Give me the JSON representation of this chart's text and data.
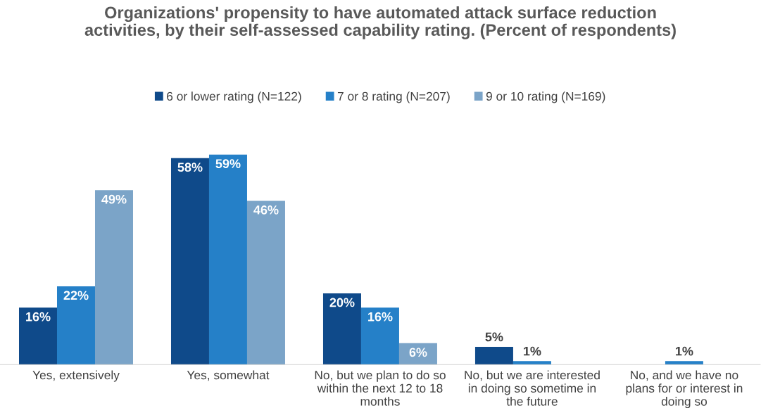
{
  "chart_data": {
    "type": "bar",
    "title": "Organizations' propensity to have automated attack surface reduction activities, by their self-assessed capability rating. (Percent of respondents)",
    "categories": [
      "Yes, extensively",
      "Yes, somewhat",
      "No, but we plan to do so within the next 12 to 18 months",
      "No, but we are interested in doing so sometime in the future",
      "No, and we have no plans for or interest in doing so"
    ],
    "series": [
      {
        "name": "6 or lower rating (N=122)",
        "color": "#0f4a8a",
        "values": [
          16,
          58,
          20,
          5,
          null
        ],
        "value_labels": [
          "16%",
          "58%",
          "20%",
          "5%",
          null
        ]
      },
      {
        "name": "7 or 8 rating (N=207)",
        "color": "#2580c8",
        "values": [
          22,
          59,
          16,
          1,
          1
        ],
        "value_labels": [
          "22%",
          "59%",
          "16%",
          "1%",
          "1%"
        ]
      },
      {
        "name": "9 or 10 rating (N=169)",
        "color": "#7ba4c8",
        "values": [
          49,
          46,
          6,
          null,
          null
        ],
        "value_labels": [
          "49%",
          "46%",
          "6%",
          null,
          null
        ]
      }
    ],
    "tick_labels": "x",
    "grid": false,
    "legend": "top"
  }
}
